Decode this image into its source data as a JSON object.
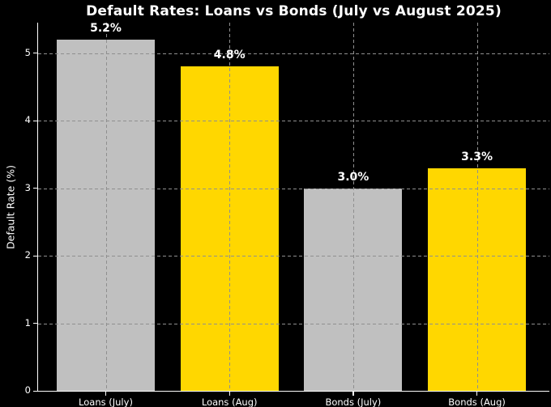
{
  "figure": {
    "background": "#000000",
    "text_color": "#ffffff",
    "axis_color": "#ffffff",
    "grid_color": "#8f8f8f"
  },
  "chart_data": {
    "type": "bar",
    "title": "Default Rates: Loans vs Bonds (July vs August 2025)",
    "ylabel": "Default Rate (%)",
    "xlabel": "",
    "categories": [
      "Loans (July)",
      "Loans (Aug)",
      "Bonds (July)",
      "Bonds (Aug)"
    ],
    "values": [
      5.2,
      4.8,
      3.0,
      3.3
    ],
    "bar_labels": [
      "5.2%",
      "4.8%",
      "3.0%",
      "3.3%"
    ],
    "bar_colors": [
      "#c0c0c0",
      "#ffd700",
      "#c0c0c0",
      "#ffd700"
    ],
    "yticks": [
      0,
      1,
      2,
      3,
      4,
      5
    ],
    "ylim": [
      0,
      5.45
    ],
    "grid": {
      "visible": true,
      "style": "dashed",
      "axis": "both",
      "drawn_over_bars": true
    },
    "legend": {
      "visible": false
    }
  }
}
